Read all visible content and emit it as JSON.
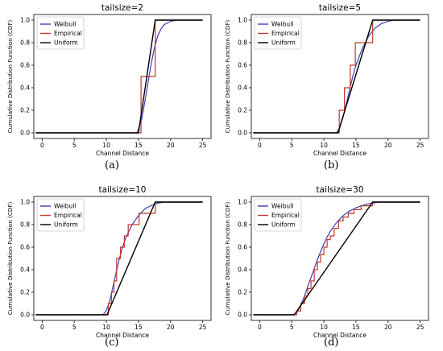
{
  "chart_data": [
    {
      "type": "line",
      "title": "tailsize=2",
      "caption": "(a)",
      "xlabel": "Channel Distance",
      "ylabel": "Cumulative Distribution Function (CDF)",
      "xlim": [
        -1.3,
        26.3
      ],
      "ylim": [
        -0.05,
        1.05
      ],
      "xticks": [
        0,
        5,
        10,
        15,
        20,
        25
      ],
      "yticks": [
        0.0,
        0.2,
        0.4,
        0.6,
        0.8,
        1.0
      ],
      "grid": false,
      "legend": "top-left",
      "series": [
        {
          "name": "Weibull",
          "color": "#3a3fb5",
          "x": [
            -1,
            14.8,
            15.5,
            16.0,
            16.5,
            17.0,
            17.5,
            18.0,
            18.5,
            19.0,
            20.0,
            21.0,
            25
          ],
          "y": [
            0,
            0,
            0.12,
            0.28,
            0.45,
            0.62,
            0.76,
            0.86,
            0.92,
            0.96,
            0.99,
            1.0,
            1.0
          ]
        },
        {
          "name": "Empirical",
          "color": "#c0392b",
          "step": true,
          "x": [
            -1,
            15.4,
            17.6,
            25
          ],
          "y": [
            0,
            0.5,
            1.0,
            1.0
          ]
        },
        {
          "name": "Uniform",
          "color": "#000000",
          "x": [
            -1,
            15.0,
            17.6,
            25
          ],
          "y": [
            0,
            0,
            1.0,
            1.0
          ]
        }
      ]
    },
    {
      "type": "line",
      "title": "tailsize=5",
      "caption": "(b)",
      "xlabel": "Channel Distance",
      "ylabel": "Cumulative Distribution Function (CDF)",
      "xlim": [
        -1.3,
        26.3
      ],
      "ylim": [
        -0.05,
        1.05
      ],
      "xticks": [
        0,
        5,
        10,
        15,
        20,
        25
      ],
      "yticks": [
        0.0,
        0.2,
        0.4,
        0.6,
        0.8,
        1.0
      ],
      "grid": false,
      "legend": "top-left",
      "series": [
        {
          "name": "Weibull",
          "color": "#3a3fb5",
          "x": [
            -1,
            12.0,
            12.5,
            13.0,
            13.5,
            14.0,
            14.5,
            15.0,
            16.0,
            17.0,
            18.0,
            19.0,
            20.0,
            21.0,
            25
          ],
          "y": [
            0,
            0,
            0.05,
            0.14,
            0.26,
            0.38,
            0.5,
            0.6,
            0.75,
            0.86,
            0.93,
            0.97,
            0.99,
            1.0,
            1.0
          ]
        },
        {
          "name": "Empirical",
          "color": "#c0392b",
          "step": true,
          "x": [
            -1,
            12.4,
            13.2,
            14.1,
            14.9,
            17.6,
            25
          ],
          "y": [
            0,
            0.2,
            0.4,
            0.6,
            0.8,
            1.0,
            1.0
          ]
        },
        {
          "name": "Uniform",
          "color": "#000000",
          "x": [
            -1,
            12.2,
            17.6,
            25
          ],
          "y": [
            0,
            0,
            1.0,
            1.0
          ]
        }
      ]
    },
    {
      "type": "line",
      "title": "tailsize=10",
      "caption": "(c)",
      "xlabel": "Channel Distance",
      "ylabel": "Cumulative Distribution Function (CDF)",
      "xlim": [
        -1.3,
        26.3
      ],
      "ylim": [
        -0.05,
        1.05
      ],
      "xticks": [
        0,
        5,
        10,
        15,
        20,
        25
      ],
      "yticks": [
        0.0,
        0.2,
        0.4,
        0.6,
        0.8,
        1.0
      ],
      "grid": false,
      "legend": "top-left",
      "series": [
        {
          "name": "Weibull",
          "color": "#3a3fb5",
          "x": [
            -1,
            9.5,
            10.0,
            10.5,
            11.0,
            11.5,
            12.0,
            12.5,
            13.0,
            14.0,
            15.0,
            16.0,
            17.0,
            18.0,
            19.0,
            25
          ],
          "y": [
            0,
            0,
            0.04,
            0.12,
            0.24,
            0.37,
            0.49,
            0.6,
            0.68,
            0.8,
            0.88,
            0.94,
            0.97,
            0.99,
            1.0,
            1.0
          ]
        },
        {
          "name": "Empirical",
          "color": "#c0392b",
          "step": true,
          "x": [
            -1,
            10.3,
            10.8,
            11.2,
            11.6,
            12.2,
            12.8,
            13.4,
            14.1,
            15.1,
            17.6,
            25
          ],
          "y": [
            0,
            0.1,
            0.2,
            0.3,
            0.5,
            0.6,
            0.7,
            0.8,
            0.8,
            0.9,
            1.0,
            1.0
          ]
        },
        {
          "name": "Uniform",
          "color": "#000000",
          "x": [
            -1,
            10.1,
            17.6,
            25
          ],
          "y": [
            0,
            0,
            1.0,
            1.0
          ]
        }
      ]
    },
    {
      "type": "line",
      "title": "tailsize=30",
      "caption": "(d)",
      "xlabel": "Channel Distance",
      "ylabel": "Cumulative Distribution Function (CDF)",
      "xlim": [
        -1.3,
        26.3
      ],
      "ylim": [
        -0.05,
        1.05
      ],
      "xticks": [
        0,
        5,
        10,
        15,
        20,
        25
      ],
      "yticks": [
        0.0,
        0.2,
        0.4,
        0.6,
        0.8,
        1.0
      ],
      "grid": false,
      "legend": "top-left",
      "series": [
        {
          "name": "Weibull",
          "color": "#3a3fb5",
          "x": [
            -1,
            5.3,
            6.0,
            6.5,
            7.0,
            7.5,
            8.0,
            8.5,
            9.0,
            9.5,
            10.0,
            10.5,
            11.0,
            12.0,
            13.0,
            14.0,
            15.0,
            16.0,
            17.0,
            18.0,
            19.0,
            25
          ],
          "y": [
            0,
            0,
            0.04,
            0.1,
            0.17,
            0.25,
            0.33,
            0.41,
            0.49,
            0.56,
            0.63,
            0.69,
            0.74,
            0.82,
            0.88,
            0.92,
            0.95,
            0.97,
            0.985,
            0.995,
            1.0,
            1.0
          ]
        },
        {
          "name": "Empirical",
          "color": "#c0392b",
          "step": true,
          "x": [
            -1,
            5.8,
            6.4,
            7.0,
            7.5,
            8.0,
            8.5,
            9.0,
            9.5,
            10.0,
            10.5,
            11.0,
            11.6,
            12.3,
            13.0,
            13.8,
            14.7,
            15.8,
            17.6,
            25
          ],
          "y": [
            0,
            0.033,
            0.1,
            0.167,
            0.233,
            0.3,
            0.4,
            0.467,
            0.533,
            0.6,
            0.667,
            0.7,
            0.767,
            0.833,
            0.867,
            0.9,
            0.933,
            0.967,
            1.0,
            1.0
          ]
        },
        {
          "name": "Uniform",
          "color": "#000000",
          "x": [
            -1,
            5.4,
            17.6,
            25
          ],
          "y": [
            0,
            0,
            1.0,
            1.0
          ]
        }
      ]
    }
  ]
}
